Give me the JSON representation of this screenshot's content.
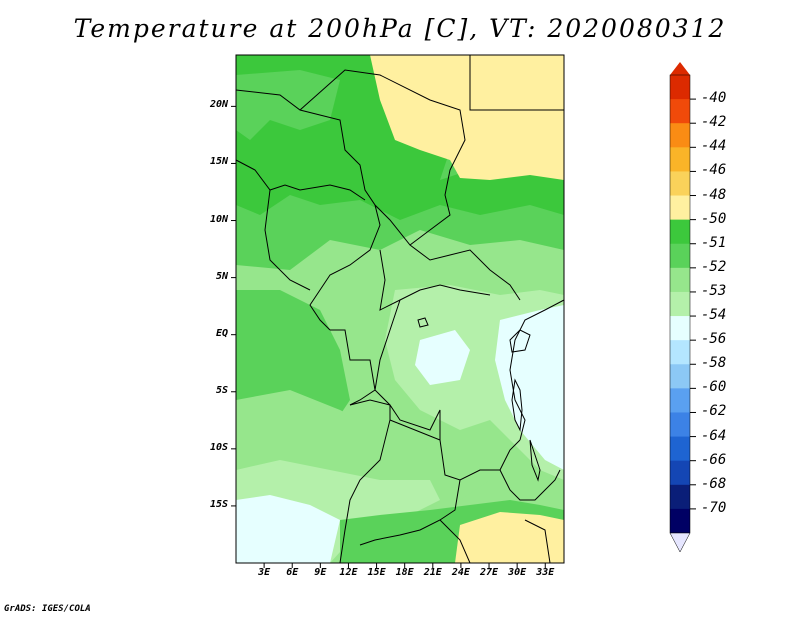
{
  "title": "Temperature at 200hPa [C], VT: 2020080312",
  "credit": "GrADS: IGES/COLA",
  "map": {
    "lat_labels": [
      "20N",
      "15N",
      "10N",
      "5N",
      "EQ",
      "5S",
      "10S",
      "15S"
    ],
    "lon_labels": [
      "3E",
      "6E",
      "9E",
      "12E",
      "15E",
      "18E",
      "21E",
      "24E",
      "27E",
      "30E",
      "33E"
    ],
    "lon_range": [
      0,
      35
    ],
    "lat_range": [
      -20,
      24.5
    ]
  },
  "colorbar": {
    "labels": [
      "-40",
      "-42",
      "-44",
      "-46",
      "-48",
      "-50",
      "-51",
      "-52",
      "-53",
      "-54",
      "-56",
      "-58",
      "-60",
      "-62",
      "-64",
      "-66",
      "-68",
      "-70"
    ],
    "colors": [
      "#dc2a00",
      "#f04a0a",
      "#fa8c14",
      "#fab428",
      "#fad25a",
      "#fff0a0",
      "#3cc83c",
      "#5ad25a",
      "#96e68c",
      "#b4f0aa",
      "#e6ffff",
      "#b4e6ff",
      "#8cc8f5",
      "#5aa0f0",
      "#3c82e6",
      "#1e64d2",
      "#1446b4",
      "#0a1e78",
      "#000064"
    ],
    "top_arrow_color": "#dc2a00",
    "bottom_arrow_color": "#e6e6ff"
  },
  "field_colors": {
    "c_50": "#fff0a0",
    "c_51": "#3cc83c",
    "c_52": "#5ad25a",
    "c_53": "#96e68c",
    "c_54": "#b4f0aa",
    "c_56": "#e6ffff"
  }
}
